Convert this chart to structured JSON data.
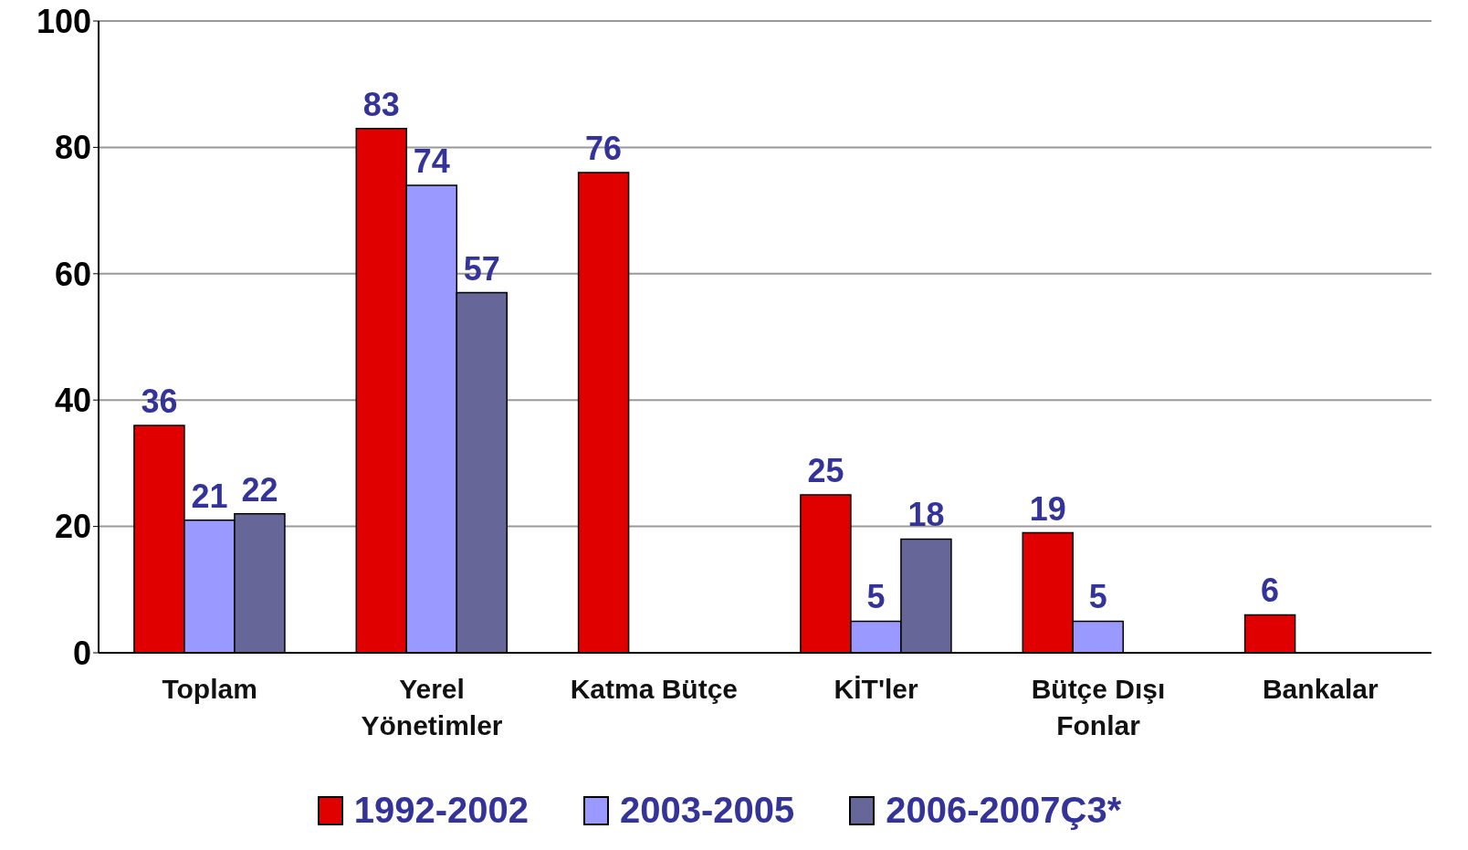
{
  "chart_data": {
    "type": "bar",
    "categories": [
      "Toplam",
      "Yerel Yönetimler",
      "Katma Bütçe",
      "KİT'ler",
      "Bütçe Dışı Fonlar",
      "Bankalar"
    ],
    "series": [
      {
        "name": "1992-2002",
        "color": "#e00000",
        "values": [
          36,
          83,
          76,
          25,
          19,
          6
        ]
      },
      {
        "name": "2003-2005",
        "color": "#9999ff",
        "values": [
          21,
          74,
          null,
          5,
          5,
          null
        ]
      },
      {
        "name": "2006-2007Ç3*",
        "color": "#666699",
        "values": [
          22,
          57,
          null,
          18,
          null,
          null
        ]
      }
    ],
    "ylim": [
      0,
      100
    ],
    "yticks": [
      0,
      20,
      40,
      60,
      80,
      100
    ],
    "grid": "y",
    "legend": "bottom",
    "data_labels": true
  }
}
